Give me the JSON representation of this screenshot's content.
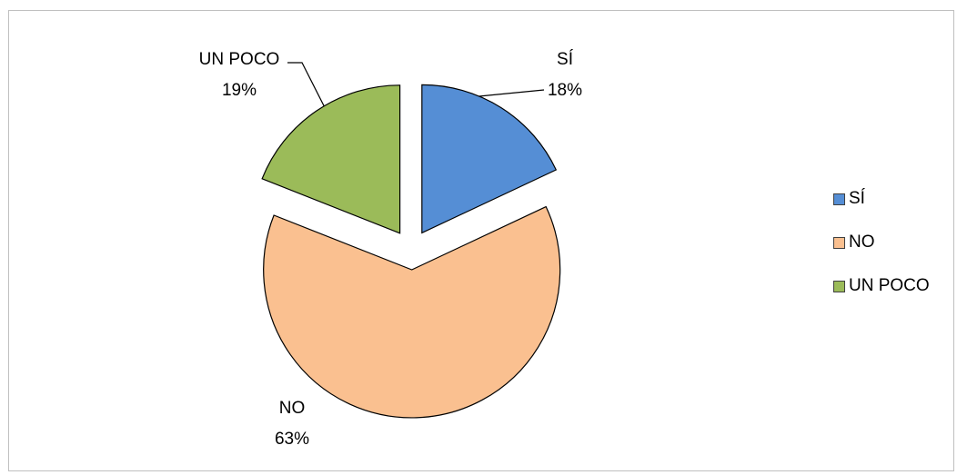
{
  "chart_data": {
    "type": "pie",
    "title": "",
    "slices": [
      {
        "label": "SÍ",
        "value": 18,
        "value_label": "18%",
        "color": "#558ed5"
      },
      {
        "label": "NO",
        "value": 63,
        "value_label": "63%",
        "color": "#fac090"
      },
      {
        "label": "UN POCO",
        "value": 19,
        "value_label": "19%",
        "color": "#9bbb59"
      }
    ],
    "exploded": true,
    "legend_position": "right"
  }
}
